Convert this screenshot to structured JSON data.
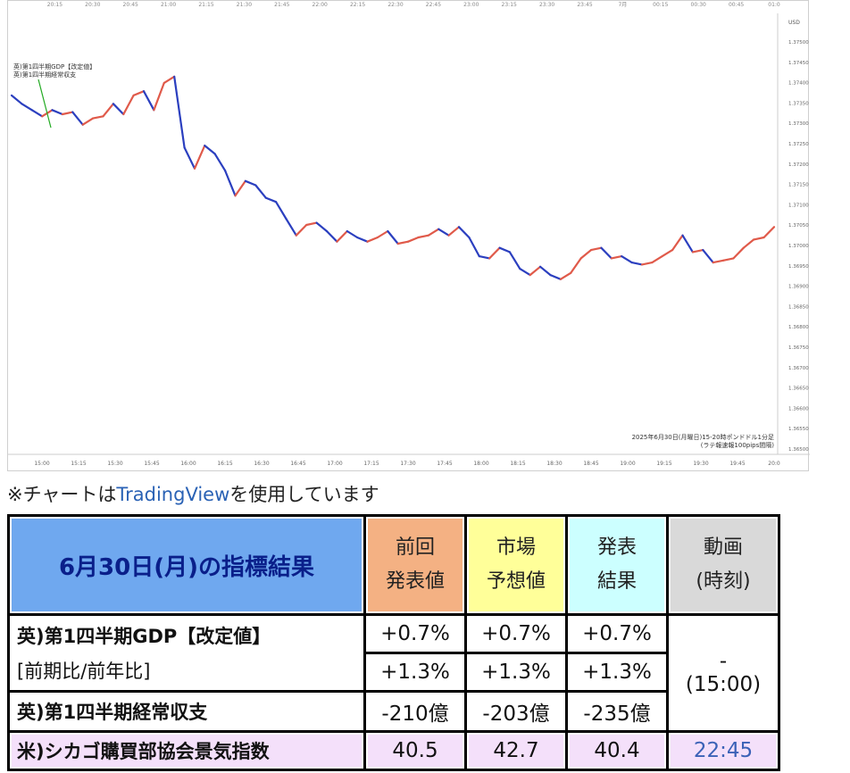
{
  "chart_data": {
    "type": "line",
    "annotation": [
      "英)第1四半期GDP【改定値】",
      "英)第1四半期経常収支"
    ],
    "x_ticks": [
      "15:00",
      "15:15",
      "15:30",
      "15:45",
      "16:00",
      "16:15",
      "16:30",
      "16:45",
      "17:00",
      "17:15",
      "17:30",
      "17:45",
      "18:00",
      "18:15",
      "18:30",
      "18:45",
      "19:00",
      "19:15",
      "19:30",
      "19:45",
      "20:0"
    ],
    "top_ticks": [
      "",
      "20:15",
      "20:30",
      "20:45",
      "21:00",
      "21:15",
      "21:30",
      "21:45",
      "22:00",
      "22:15",
      "22:30",
      "22:45",
      "23:00",
      "23:15",
      "23:30",
      "23:45",
      "7月",
      "00:15",
      "00:30",
      "00:45",
      "01:0"
    ],
    "y_unit": "USD",
    "y_ticks": [
      "1.37500",
      "1.37450",
      "1.37400",
      "1.37350",
      "1.37300",
      "1.37250",
      "1.37200",
      "1.37150",
      "1.37100",
      "1.37050",
      "1.37000",
      "1.36950",
      "1.36900",
      "1.36850",
      "1.36800",
      "1.36750",
      "1.36700",
      "1.36650",
      "1.36600",
      "1.36550",
      "1.36500"
    ],
    "ylim": [
      1.365,
      1.375
    ],
    "x_range": [
      "15:00",
      "20:00"
    ],
    "series": [
      {
        "x": [
          0,
          4,
          8,
          12,
          16,
          20,
          24,
          28,
          32,
          36,
          40,
          44,
          48,
          52,
          56,
          60,
          64,
          68,
          72,
          76,
          80,
          84,
          88,
          92,
          96,
          100,
          104,
          108,
          112,
          116,
          120,
          124,
          128,
          132,
          136,
          140,
          144,
          148,
          152,
          156,
          160,
          164,
          168,
          172,
          176,
          180,
          184,
          188,
          192,
          196,
          200,
          204,
          208,
          212,
          216,
          220,
          224,
          228,
          232,
          236,
          240,
          244,
          248,
          252,
          256,
          260,
          264,
          268,
          272,
          276,
          280,
          284,
          288,
          292,
          296,
          300
        ],
        "y": [
          1.37325,
          1.37305,
          1.3729,
          1.37275,
          1.3729,
          1.3728,
          1.37285,
          1.37255,
          1.3727,
          1.37275,
          1.37305,
          1.3728,
          1.37325,
          1.37335,
          1.3729,
          1.37355,
          1.3737,
          1.372,
          1.3715,
          1.37205,
          1.37185,
          1.37145,
          1.37085,
          1.3712,
          1.3711,
          1.3708,
          1.3707,
          1.3703,
          1.3699,
          1.37015,
          1.3702,
          1.37,
          1.36975,
          1.37,
          1.36985,
          1.36975,
          1.36985,
          1.37,
          1.3697,
          1.36975,
          1.36985,
          1.3699,
          1.37005,
          1.3699,
          1.3701,
          1.36985,
          1.3694,
          1.36935,
          1.3696,
          1.3695,
          1.3691,
          1.36895,
          1.36915,
          1.36895,
          1.36885,
          1.369,
          1.36935,
          1.36955,
          1.3696,
          1.36935,
          1.3694,
          1.36925,
          1.3692,
          1.36925,
          1.3694,
          1.36955,
          1.3699,
          1.3695,
          1.36955,
          1.36925,
          1.3693,
          1.36935,
          1.3696,
          1.3698,
          1.36985,
          1.3701
        ]
      }
    ],
    "info_line1": "2025年6月30日(月曜日)15-20時ポンドドル1分足",
    "info_line2": "(ラテ報速報100pips間隔)",
    "colors": {
      "up": "#e05a4a",
      "down": "#2b3fbf",
      "annotation": "#22aa22"
    }
  },
  "caption": {
    "prefix": "※チャートは",
    "link": "TradingView",
    "suffix": "を使用しています"
  },
  "table": {
    "title": "6月30日(月)の指標結果",
    "col_prev": [
      "前回",
      "発表値"
    ],
    "col_forecast": [
      "市場",
      "予想値"
    ],
    "col_result": [
      "発表",
      "結果"
    ],
    "col_video": [
      "動画",
      "(時刻)"
    ],
    "rows": [
      {
        "name": "英)第1四半期GDP【改定値】",
        "sub": "[前期比/前年比]",
        "prev": [
          "+0.7%",
          "+1.3%"
        ],
        "forecast": [
          "+0.7%",
          "+1.3%"
        ],
        "result": [
          "+0.7%",
          "+1.3%"
        ]
      },
      {
        "name": "英)第1四半期経常収支",
        "prev": "-210億",
        "forecast": "-203億",
        "result": "-235億"
      },
      {
        "name": "米)シカゴ購買部協会景気指数",
        "prev": "40.5",
        "forecast": "42.7",
        "result": "40.4",
        "time": "22:45"
      }
    ],
    "shared_time": [
      "-",
      "(15:00)"
    ],
    "colors": {
      "title_bg": "#6fa8ef",
      "title_text": "#0a1f8a",
      "prev_bg": "#f4b183",
      "forecast_bg": "#ffff99",
      "result_bg": "#ccffff",
      "video_bg": "#d9d9d9",
      "last_row_bg": "#f4e0fa",
      "link": "#2a62b5"
    }
  }
}
